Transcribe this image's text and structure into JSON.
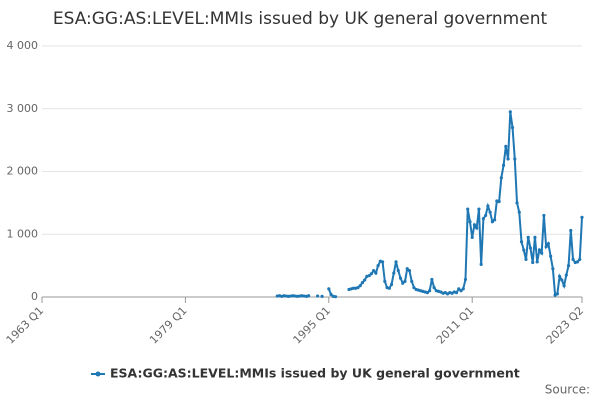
{
  "chart_data": {
    "type": "line",
    "title": "ESA:GG:AS:LEVEL:MMIs issued by UK general government",
    "source_label": "Source:",
    "xlim": [
      "1963 Q1",
      "2023 Q2"
    ],
    "xticks": [
      "1963 Q1",
      "1979 Q1",
      "1995 Q1",
      "2011 Q1",
      "2023 Q2"
    ],
    "ylim": [
      0,
      4000
    ],
    "yticks": [
      0,
      {
        "value": 1000,
        "label": "1 000"
      },
      {
        "value": 2000,
        "label": "2 000"
      },
      {
        "value": 3000,
        "label": "3 000"
      },
      {
        "value": 4000,
        "label": "4 000"
      }
    ],
    "grid": true,
    "x": [
      "1989 Q2",
      "1989 Q3",
      "1989 Q4",
      "1990 Q1",
      "1990 Q2",
      "1990 Q3",
      "1990 Q4",
      "1991 Q1",
      "1991 Q2",
      "1991 Q3",
      "1991 Q4",
      "1992 Q1",
      "1992 Q2",
      "1992 Q3",
      "1992 Q4",
      "1993 Q1",
      "1993 Q2",
      "1993 Q3",
      "1993 Q4",
      "1994 Q1",
      "1994 Q2",
      "1994 Q3",
      "1994 Q4",
      "1995 Q1",
      "1995 Q2",
      "1995 Q3",
      "1995 Q4",
      "1996 Q1",
      "1996 Q2",
      "1996 Q3",
      "1996 Q4",
      "1997 Q1",
      "1997 Q2",
      "1997 Q3",
      "1997 Q4",
      "1998 Q1",
      "1998 Q2",
      "1998 Q3",
      "1998 Q4",
      "1999 Q1",
      "1999 Q2",
      "1999 Q3",
      "1999 Q4",
      "2000 Q1",
      "2000 Q2",
      "2000 Q3",
      "2000 Q4",
      "2001 Q1",
      "2001 Q2",
      "2001 Q3",
      "2001 Q4",
      "2002 Q1",
      "2002 Q2",
      "2002 Q3",
      "2002 Q4",
      "2003 Q1",
      "2003 Q2",
      "2003 Q3",
      "2003 Q4",
      "2004 Q1",
      "2004 Q2",
      "2004 Q3",
      "2004 Q4",
      "2005 Q1",
      "2005 Q2",
      "2005 Q3",
      "2005 Q4",
      "2006 Q1",
      "2006 Q2",
      "2006 Q3",
      "2006 Q4",
      "2007 Q1",
      "2007 Q2",
      "2007 Q3",
      "2007 Q4",
      "2008 Q1",
      "2008 Q2",
      "2008 Q3",
      "2008 Q4",
      "2009 Q1",
      "2009 Q2",
      "2009 Q3",
      "2009 Q4",
      "2010 Q1",
      "2010 Q2",
      "2010 Q3",
      "2010 Q4",
      "2011 Q1",
      "2011 Q2",
      "2011 Q3",
      "2011 Q4",
      "2012 Q1",
      "2012 Q2",
      "2012 Q3",
      "2012 Q4",
      "2013 Q1",
      "2013 Q2",
      "2013 Q3",
      "2013 Q4",
      "2014 Q1",
      "2014 Q2",
      "2014 Q3",
      "2014 Q4",
      "2015 Q1",
      "2015 Q2",
      "2015 Q3",
      "2015 Q4",
      "2016 Q1",
      "2016 Q2",
      "2016 Q3",
      "2016 Q4",
      "2017 Q1",
      "2017 Q2",
      "2017 Q3",
      "2017 Q4",
      "2018 Q1",
      "2018 Q2",
      "2018 Q3",
      "2018 Q4",
      "2019 Q1",
      "2019 Q2",
      "2019 Q3",
      "2019 Q4",
      "2020 Q1",
      "2020 Q2",
      "2020 Q3",
      "2020 Q4",
      "2021 Q1",
      "2021 Q2",
      "2021 Q3",
      "2021 Q4",
      "2022 Q1",
      "2022 Q2",
      "2022 Q3",
      "2022 Q4",
      "2023 Q1",
      "2023 Q2"
    ],
    "series": [
      {
        "name": "ESA:GG:AS:LEVEL:MMIs issued by UK general government",
        "color": "#1f77b4",
        "values": [
          15,
          20,
          10,
          20,
          15,
          10,
          15,
          20,
          15,
          10,
          15,
          20,
          15,
          10,
          20,
          null,
          null,
          null,
          15,
          null,
          10,
          null,
          null,
          130,
          40,
          10,
          5,
          null,
          null,
          null,
          null,
          null,
          120,
          130,
          140,
          140,
          150,
          180,
          230,
          270,
          330,
          340,
          370,
          420,
          380,
          500,
          570,
          560,
          250,
          150,
          140,
          200,
          380,
          560,
          420,
          300,
          220,
          250,
          450,
          420,
          250,
          150,
          120,
          110,
          100,
          90,
          80,
          70,
          100,
          280,
          150,
          100,
          90,
          80,
          60,
          70,
          50,
          70,
          60,
          80,
          70,
          130,
          100,
          130,
          280,
          1400,
          1200,
          950,
          1150,
          1100,
          1400,
          520,
          1250,
          1300,
          1450,
          1350,
          1200,
          1230,
          1530,
          1520,
          1900,
          2100,
          2400,
          2200,
          2950,
          2700,
          2200,
          1500,
          1350,
          880,
          750,
          600,
          950,
          780,
          550,
          950,
          560,
          750,
          700,
          1300,
          800,
          850,
          650,
          450,
          30,
          50,
          330,
          270,
          180,
          350,
          500,
          1060,
          600,
          550,
          560,
          600,
          1270
        ]
      }
    ]
  }
}
